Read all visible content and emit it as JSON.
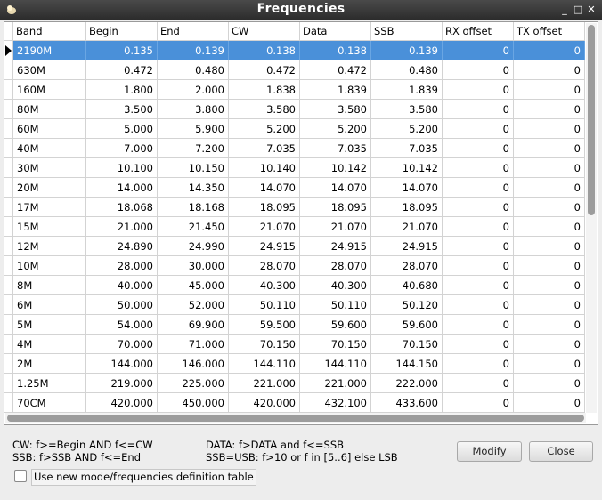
{
  "window": {
    "title": "Frequencies",
    "buttons": [
      "_",
      "□",
      "✕"
    ]
  },
  "table": {
    "columns": [
      "Band",
      "Begin",
      "End",
      "CW",
      "Data",
      "SSB",
      "RX offset",
      "TX offset"
    ],
    "selected_row": 0,
    "rows": [
      [
        "2190M",
        "0.135",
        "0.139",
        "0.138",
        "0.138",
        "0.139",
        "0",
        "0"
      ],
      [
        "630M",
        "0.472",
        "0.480",
        "0.472",
        "0.472",
        "0.480",
        "0",
        "0"
      ],
      [
        "160M",
        "1.800",
        "2.000",
        "1.838",
        "1.839",
        "1.839",
        "0",
        "0"
      ],
      [
        "80M",
        "3.500",
        "3.800",
        "3.580",
        "3.580",
        "3.580",
        "0",
        "0"
      ],
      [
        "60M",
        "5.000",
        "5.900",
        "5.200",
        "5.200",
        "5.200",
        "0",
        "0"
      ],
      [
        "40M",
        "7.000",
        "7.200",
        "7.035",
        "7.035",
        "7.035",
        "0",
        "0"
      ],
      [
        "30M",
        "10.100",
        "10.150",
        "10.140",
        "10.142",
        "10.142",
        "0",
        "0"
      ],
      [
        "20M",
        "14.000",
        "14.350",
        "14.070",
        "14.070",
        "14.070",
        "0",
        "0"
      ],
      [
        "17M",
        "18.068",
        "18.168",
        "18.095",
        "18.095",
        "18.095",
        "0",
        "0"
      ],
      [
        "15M",
        "21.000",
        "21.450",
        "21.070",
        "21.070",
        "21.070",
        "0",
        "0"
      ],
      [
        "12M",
        "24.890",
        "24.990",
        "24.915",
        "24.915",
        "24.915",
        "0",
        "0"
      ],
      [
        "10M",
        "28.000",
        "30.000",
        "28.070",
        "28.070",
        "28.070",
        "0",
        "0"
      ],
      [
        "8M",
        "40.000",
        "45.000",
        "40.300",
        "40.300",
        "40.680",
        "0",
        "0"
      ],
      [
        "6M",
        "50.000",
        "52.000",
        "50.110",
        "50.110",
        "50.120",
        "0",
        "0"
      ],
      [
        "5M",
        "54.000",
        "69.900",
        "59.500",
        "59.600",
        "59.600",
        "0",
        "0"
      ],
      [
        "4M",
        "70.000",
        "71.000",
        "70.150",
        "70.150",
        "70.150",
        "0",
        "0"
      ],
      [
        "2M",
        "144.000",
        "146.000",
        "144.110",
        "144.110",
        "144.150",
        "0",
        "0"
      ],
      [
        "1.25M",
        "219.000",
        "225.000",
        "221.000",
        "221.000",
        "222.000",
        "0",
        "0"
      ],
      [
        "70CM",
        "420.000",
        "450.000",
        "420.000",
        "432.100",
        "433.600",
        "0",
        "0"
      ]
    ]
  },
  "legend": {
    "line1_left": "CW: f>=Begin AND f<=CW",
    "line2_left": "SSB: f>SSB AND f<=End",
    "line1_right": "DATA: f>DATA and f<=SSB",
    "line2_right": "SSB=USB: f>10 or f in [5..6] else LSB"
  },
  "buttons": {
    "modify": "Modify",
    "close": "Close"
  },
  "checkbox": {
    "label": "Use new mode/frequencies definition table",
    "checked": false
  }
}
